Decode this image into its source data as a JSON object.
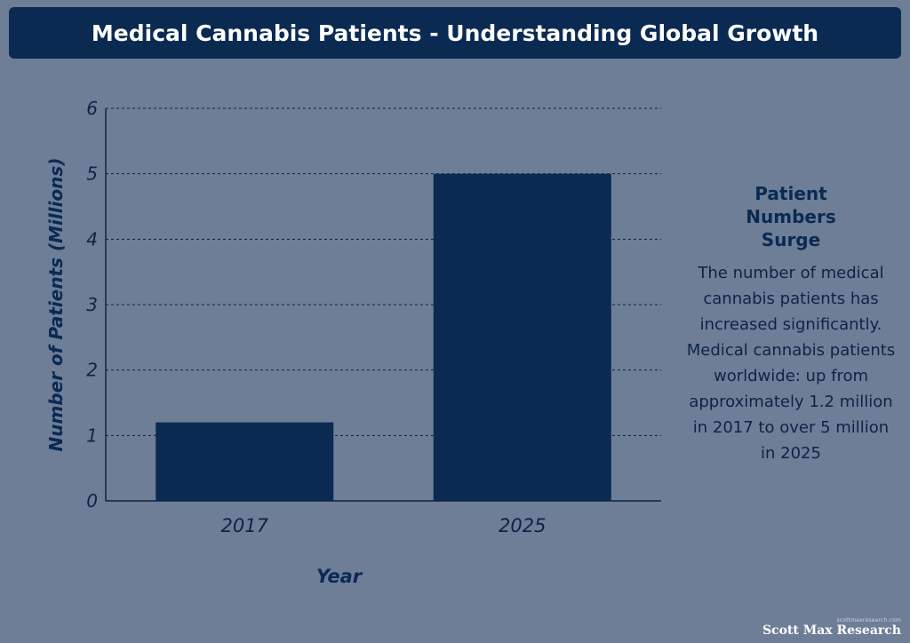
{
  "header": {
    "title": "Medical Cannabis Patients - Understanding Global Growth"
  },
  "chart_data": {
    "type": "bar",
    "categories": [
      "2017",
      "2025"
    ],
    "values": [
      1.2,
      5
    ],
    "xlabel": "Year",
    "ylabel": "Number of Patients (Millions)",
    "ylim": [
      0,
      6
    ],
    "yticks": [
      0,
      1,
      2,
      3,
      4,
      5,
      6
    ],
    "grid": true,
    "colors": {
      "bar": "#0a2a52",
      "background": "#6e7e96",
      "grid": "#0d2447"
    }
  },
  "sidebar": {
    "heading": "Patient Numbers Surge",
    "body": "The number of medical cannabis patients has increased significantly. Medical cannabis patients worldwide: up from approximately 1.2 million in 2017 to over 5 million in 2025"
  },
  "branding": {
    "small": "scottmaxresearch.com",
    "name": "Scott Max Research"
  }
}
